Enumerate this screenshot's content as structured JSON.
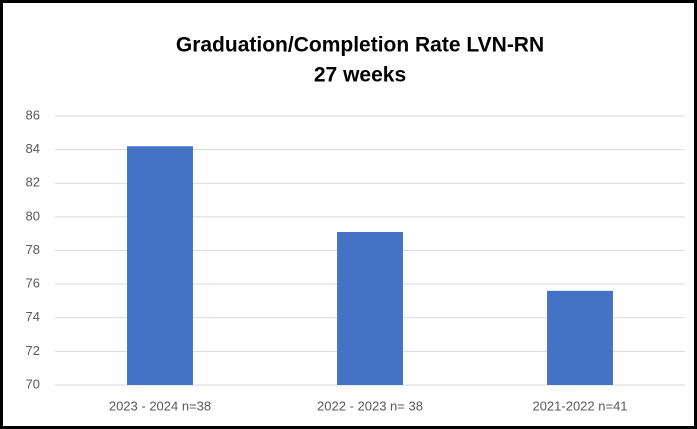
{
  "chart_data": {
    "type": "bar",
    "title": "Graduation/Completion Rate LVN-RN",
    "subtitle": "27 weeks",
    "categories": [
      "2023 - 2024 n=38",
      "2022 - 2023 n= 38",
      "2021-2022 n=41"
    ],
    "values": [
      84.2,
      79.1,
      75.6
    ],
    "color": "#4472c4",
    "ylim": [
      70,
      86
    ],
    "yticks": [
      70,
      72,
      74,
      76,
      78,
      80,
      82,
      84,
      86
    ],
    "grid": true
  }
}
